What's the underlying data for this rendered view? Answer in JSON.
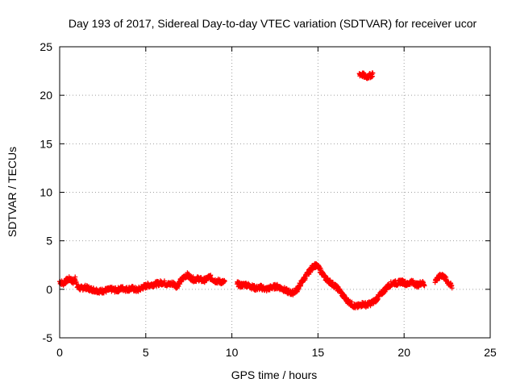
{
  "chart_data": {
    "type": "scatter",
    "title": "Day 193 of 2017, Sidereal Day-to-day VTEC variation (SDTVAR) for receiver ucor",
    "xlabel": "GPS time / hours",
    "ylabel": "SDTVAR / TECUs",
    "xlim": [
      0,
      25
    ],
    "ylim": [
      -5,
      25
    ],
    "xticks": [
      0,
      5,
      10,
      15,
      20,
      25
    ],
    "yticks": [
      -5,
      0,
      5,
      10,
      15,
      20,
      25
    ],
    "xtick_labels": [
      "0",
      "5",
      "10",
      "15",
      "20",
      "25"
    ],
    "ytick_labels": [
      "-5",
      "0",
      "5",
      "10",
      "15",
      "20",
      "25"
    ],
    "grid": true,
    "marker": "+",
    "series_color": "#ff0000",
    "series": [
      {
        "name": "SDTVAR",
        "segments": [
          [
            [
              0.0,
              0.8
            ],
            [
              0.2,
              0.6
            ],
            [
              0.4,
              0.9
            ],
            [
              0.6,
              1.1
            ],
            [
              0.8,
              0.7
            ],
            [
              0.9,
              1.3
            ],
            [
              1.0,
              0.3
            ],
            [
              1.2,
              0.1
            ],
            [
              1.5,
              0.2
            ],
            [
              1.8,
              0.0
            ],
            [
              2.1,
              -0.1
            ],
            [
              2.4,
              -0.2
            ],
            [
              2.7,
              -0.1
            ],
            [
              3.0,
              0.0
            ],
            [
              3.3,
              -0.1
            ],
            [
              3.6,
              0.1
            ],
            [
              3.9,
              0.0
            ],
            [
              4.2,
              0.1
            ],
            [
              4.5,
              -0.1
            ],
            [
              4.8,
              0.2
            ],
            [
              5.1,
              0.4
            ],
            [
              5.4,
              0.5
            ],
            [
              5.7,
              0.6
            ],
            [
              6.0,
              0.7
            ],
            [
              6.3,
              0.5
            ],
            [
              6.6,
              0.6
            ],
            [
              6.8,
              0.3
            ],
            [
              7.0,
              0.8
            ],
            [
              7.2,
              1.2
            ],
            [
              7.4,
              1.5
            ],
            [
              7.6,
              1.2
            ],
            [
              7.8,
              1.0
            ],
            [
              8.1,
              1.1
            ],
            [
              8.3,
              0.9
            ],
            [
              8.5,
              1.0
            ],
            [
              8.7,
              1.3
            ],
            [
              9.0,
              0.9
            ],
            [
              9.3,
              0.8
            ],
            [
              9.6,
              0.7
            ]
          ],
          [
            [
              10.3,
              0.6
            ],
            [
              10.5,
              0.4
            ],
            [
              10.8,
              0.5
            ],
            [
              11.1,
              0.3
            ],
            [
              11.4,
              0.1
            ],
            [
              11.7,
              0.2
            ],
            [
              12.0,
              0.0
            ],
            [
              12.3,
              0.2
            ],
            [
              12.6,
              0.3
            ],
            [
              12.9,
              0.1
            ],
            [
              13.2,
              -0.2
            ],
            [
              13.5,
              -0.4
            ],
            [
              13.8,
              0.0
            ],
            [
              14.0,
              0.6
            ],
            [
              14.2,
              1.1
            ],
            [
              14.4,
              1.6
            ],
            [
              14.6,
              2.1
            ],
            [
              14.8,
              2.5
            ],
            [
              15.0,
              2.3
            ],
            [
              15.2,
              1.8
            ],
            [
              15.4,
              1.2
            ],
            [
              15.6,
              0.9
            ],
            [
              15.8,
              0.6
            ],
            [
              16.0,
              0.3
            ],
            [
              16.2,
              0.0
            ],
            [
              16.4,
              -0.5
            ],
            [
              16.6,
              -1.0
            ],
            [
              16.8,
              -1.3
            ],
            [
              17.0,
              -1.6
            ],
            [
              17.2,
              -1.8
            ],
            [
              17.4,
              -1.7
            ],
            [
              17.6,
              -1.5
            ],
            [
              17.8,
              -1.6
            ],
            [
              18.0,
              -1.5
            ],
            [
              18.2,
              -1.3
            ],
            [
              18.4,
              -1.0
            ],
            [
              18.6,
              -0.6
            ],
            [
              18.8,
              -0.2
            ],
            [
              19.0,
              0.2
            ],
            [
              19.2,
              0.5
            ],
            [
              19.4,
              0.7
            ],
            [
              19.6,
              0.6
            ],
            [
              19.8,
              0.8
            ],
            [
              20.0,
              0.7
            ],
            [
              20.2,
              0.5
            ],
            [
              20.4,
              0.8
            ],
            [
              20.6,
              0.6
            ],
            [
              20.8,
              0.4
            ],
            [
              21.0,
              0.7
            ],
            [
              21.2,
              0.5
            ]
          ],
          [
            [
              21.8,
              0.9
            ],
            [
              22.0,
              1.2
            ],
            [
              22.2,
              1.5
            ],
            [
              22.4,
              1.1
            ],
            [
              22.6,
              0.6
            ],
            [
              22.8,
              0.2
            ]
          ],
          [
            [
              17.4,
              22.2
            ],
            [
              17.6,
              22.1
            ],
            [
              17.8,
              21.9
            ],
            [
              18.0,
              22.0
            ],
            [
              18.2,
              22.2
            ]
          ]
        ]
      }
    ]
  }
}
